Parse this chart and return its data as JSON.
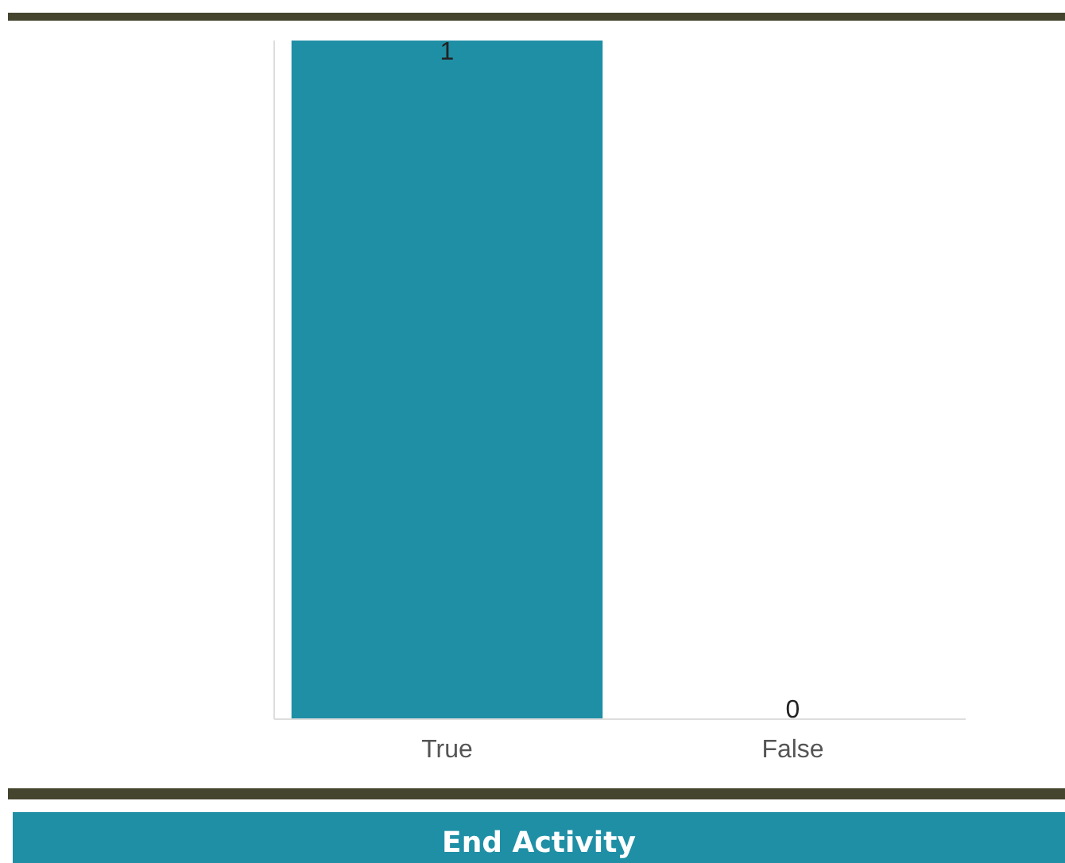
{
  "chart_data": {
    "type": "bar",
    "categories": [
      "True",
      "False"
    ],
    "values": [
      1,
      0
    ],
    "color": "#1f8fa6",
    "ylim": [
      0,
      1
    ],
    "data_labels": true,
    "grid": false,
    "tick_labels": "x",
    "annotations": [
      "End Activity"
    ]
  }
}
